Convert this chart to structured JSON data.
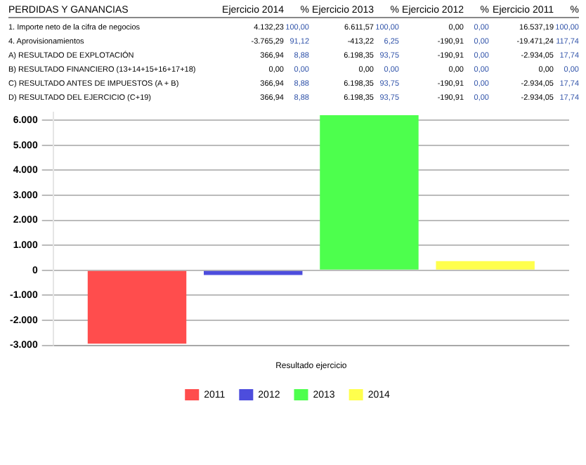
{
  "chart_data": {
    "type": "bar",
    "categories": [
      "Resultado ejercicio"
    ],
    "series": [
      {
        "name": "2011",
        "color": "#ff4d4d",
        "values": [
          -2934.05
        ]
      },
      {
        "name": "2012",
        "color": "#4d4ddd",
        "values": [
          -190.91
        ]
      },
      {
        "name": "2013",
        "color": "#4dff4d",
        "values": [
          6198.35
        ]
      },
      {
        "name": "2014",
        "color": "#ffff4d",
        "values": [
          366.94
        ]
      }
    ],
    "ylim": [
      -3000,
      6300
    ],
    "yticks": [
      {
        "value": -3000,
        "label": "-3.000"
      },
      {
        "value": -2000,
        "label": "-2.000"
      },
      {
        "value": -1000,
        "label": "-1.000"
      },
      0,
      {
        "value": 1000,
        "label": "1.000"
      },
      {
        "value": 2000,
        "label": "2.000"
      },
      {
        "value": 3000,
        "label": "3.000"
      },
      {
        "value": 4000,
        "label": "4.000"
      },
      {
        "value": 5000,
        "label": "5.000"
      },
      {
        "value": 6000,
        "label": "6.000"
      }
    ],
    "grid": "y",
    "legend": "bottom",
    "annotations": [
      "PERDIDAS Y GANANCIAS",
      "Ejercicio 2014",
      "%",
      "Ejercicio 2013",
      "%",
      "Ejercicio 2012",
      "%",
      "Ejercicio 2011",
      "%",
      "1. Importe neto de la cifra de negocios",
      "4.132,23",
      "100,00",
      "6.611,57",
      "100,00",
      "0,00",
      "0,00",
      "16.537,19",
      "100,00",
      "4. Aprovisionamientos",
      "-3.765,29",
      "91,12",
      "-413,22",
      "6,25",
      "-190,91",
      "0,00",
      "-19.471,24",
      "117,74",
      "A) RESULTADO DE EXPLOTACIÓN",
      "366,94",
      "8,88",
      "6.198,35",
      "93,75",
      "-190,91",
      "0,00",
      "-2.934,05",
      "17,74",
      "B) RESULTADO FINANCIERO (13+14+15+16+17+18)",
      "0,00",
      "0,00",
      "0,00",
      "0,00",
      "0,00",
      "0,00",
      "0,00",
      "0,00",
      "C) RESULTADO ANTES DE IMPUESTOS (A + B)",
      "366,94",
      "8,88",
      "6.198,35",
      "93,75",
      "-190,91",
      "0,00",
      "-2.934,05",
      "17,74",
      "D) RESULTADO DEL EJERCICIO (C+19)",
      "366,94",
      "8,88",
      "6.198,35",
      "93,75",
      "-190,91",
      "0,00",
      "-2.934,05",
      "17,74"
    ]
  }
}
